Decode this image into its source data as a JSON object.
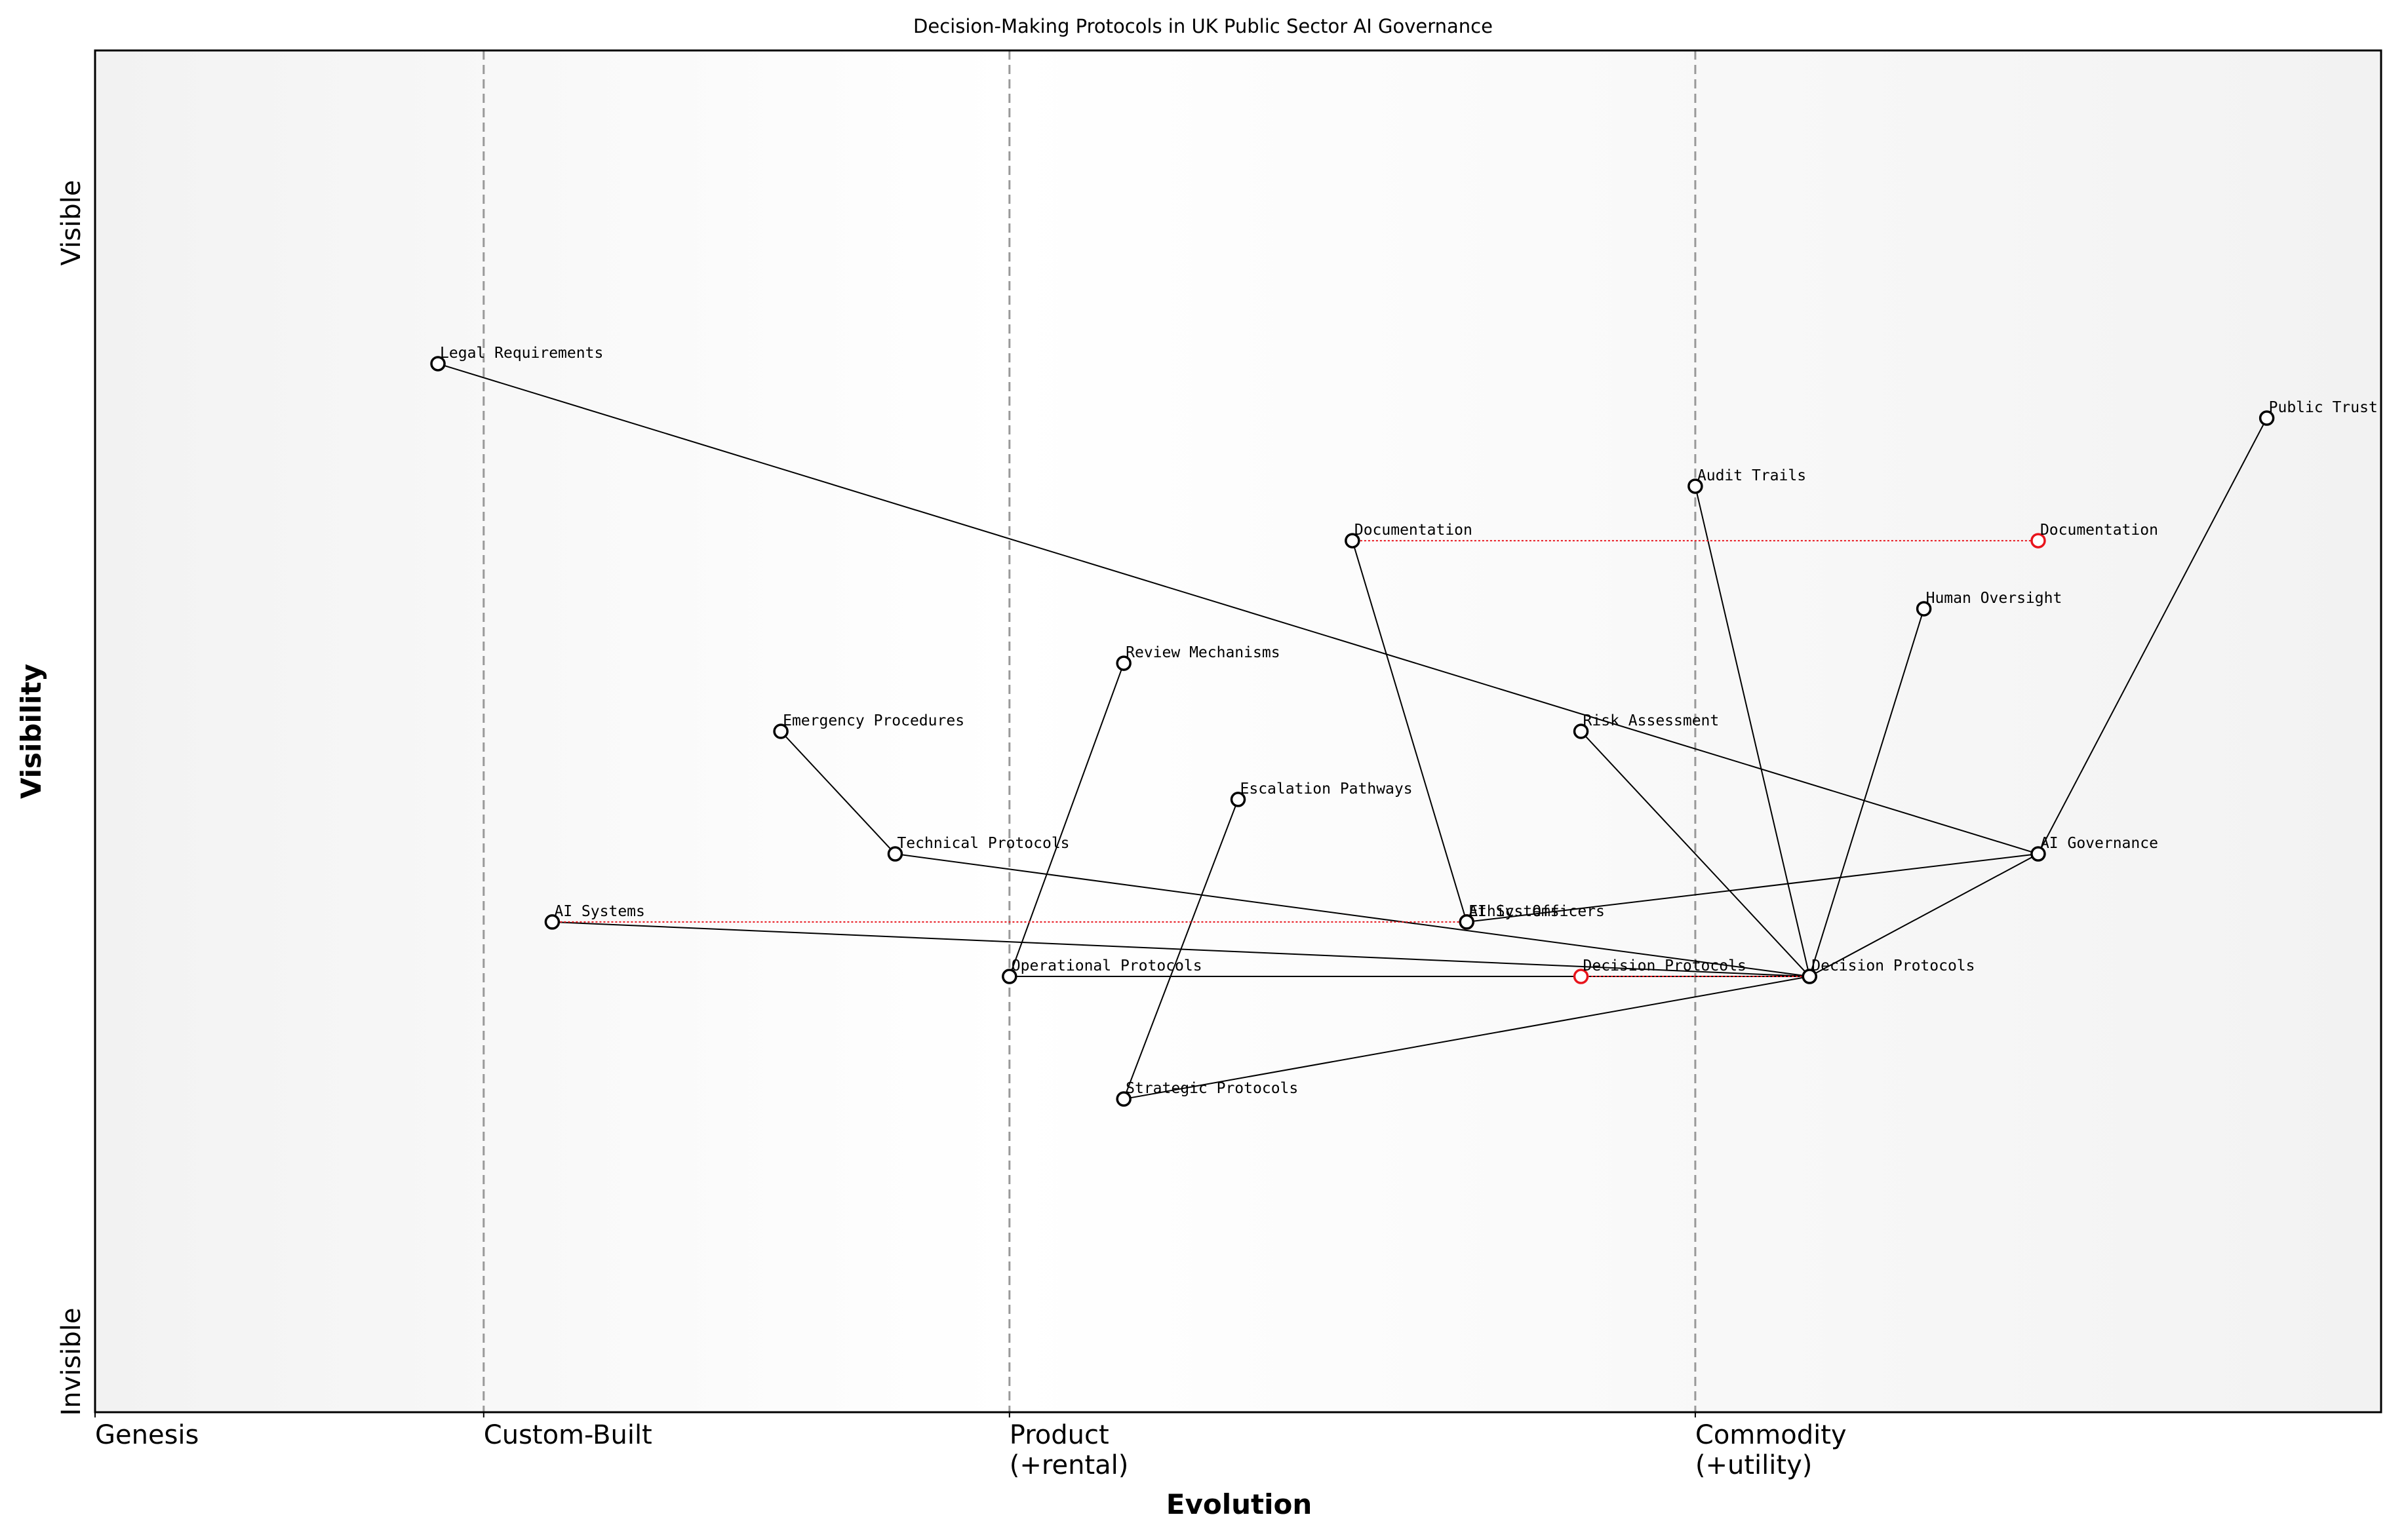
{
  "chart_data": {
    "type": "wardley",
    "title": "Decision-Making Protocols in UK Public Sector AI Governance",
    "x_label": "Evolution",
    "y_label": "Visibility",
    "y_top_label": "Visible",
    "y_bottom_label": "Invisible",
    "xlim": [
      0,
      1
    ],
    "ylim": [
      0,
      1
    ],
    "stages": [
      {
        "value": 0,
        "label": "Genesis"
      },
      {
        "value": 0.17,
        "label": "Custom-Built"
      },
      {
        "value": 0.4,
        "label": "Product\n(+rental)"
      },
      {
        "value": 0.7,
        "label": "Commodity\n(+utility)"
      }
    ],
    "components": [
      {
        "name": "Legal Requirements",
        "x": 0.15,
        "y": 0.77
      },
      {
        "name": "Public Trust",
        "x": 0.95,
        "y": 0.73
      },
      {
        "name": "Audit Trails",
        "x": 0.7,
        "y": 0.68
      },
      {
        "name": "Documentation",
        "x": 0.55,
        "y": 0.64
      },
      {
        "name": "Human Oversight",
        "x": 0.8,
        "y": 0.59
      },
      {
        "name": "Review Mechanisms",
        "x": 0.45,
        "y": 0.55
      },
      {
        "name": "Emergency Procedures",
        "x": 0.3,
        "y": 0.5
      },
      {
        "name": "Risk Assessment",
        "x": 0.65,
        "y": 0.5
      },
      {
        "name": "Escalation Pathways",
        "x": 0.5,
        "y": 0.45
      },
      {
        "name": "Technical Protocols",
        "x": 0.35,
        "y": 0.41
      },
      {
        "name": "AI Governance",
        "x": 0.85,
        "y": 0.41
      },
      {
        "name": "AI Systems",
        "x": 0.2,
        "y": 0.36
      },
      {
        "name": "Ethics Officers",
        "x": 0.6,
        "y": 0.36
      },
      {
        "name": "Operational Protocols",
        "x": 0.4,
        "y": 0.32
      },
      {
        "name": "Decision Protocols",
        "x": 0.75,
        "y": 0.32
      },
      {
        "name": "Strategic Protocols",
        "x": 0.45,
        "y": 0.23
      }
    ],
    "links": [
      [
        "Legal Requirements",
        "AI Governance"
      ],
      [
        "Public Trust",
        "AI Governance"
      ],
      [
        "AI Governance",
        "Decision Protocols"
      ],
      [
        "AI Governance",
        "Ethics Officers"
      ],
      [
        "Audit Trails",
        "Decision Protocols"
      ],
      [
        "Human Oversight",
        "Decision Protocols"
      ],
      [
        "Risk Assessment",
        "Decision Protocols"
      ],
      [
        "Documentation",
        "Ethics Officers"
      ],
      [
        "Technical Protocols",
        "Decision Protocols"
      ],
      [
        "Emergency Procedures",
        "Technical Protocols"
      ],
      [
        "AI Systems",
        "Decision Protocols"
      ],
      [
        "Operational Protocols",
        "Decision Protocols"
      ],
      [
        "Review Mechanisms",
        "Operational Protocols"
      ],
      [
        "Escalation Pathways",
        "Strategic Protocols"
      ],
      [
        "Strategic Protocols",
        "Decision Protocols"
      ]
    ],
    "evolutions": [
      {
        "component": "AI Systems",
        "to": 0.6
      },
      {
        "component": "Documentation",
        "to": 0.85
      },
      {
        "component": "Decision Protocols",
        "to": 0.65
      }
    ],
    "evolution_color": "#e8141c",
    "node_color": "#000000"
  }
}
